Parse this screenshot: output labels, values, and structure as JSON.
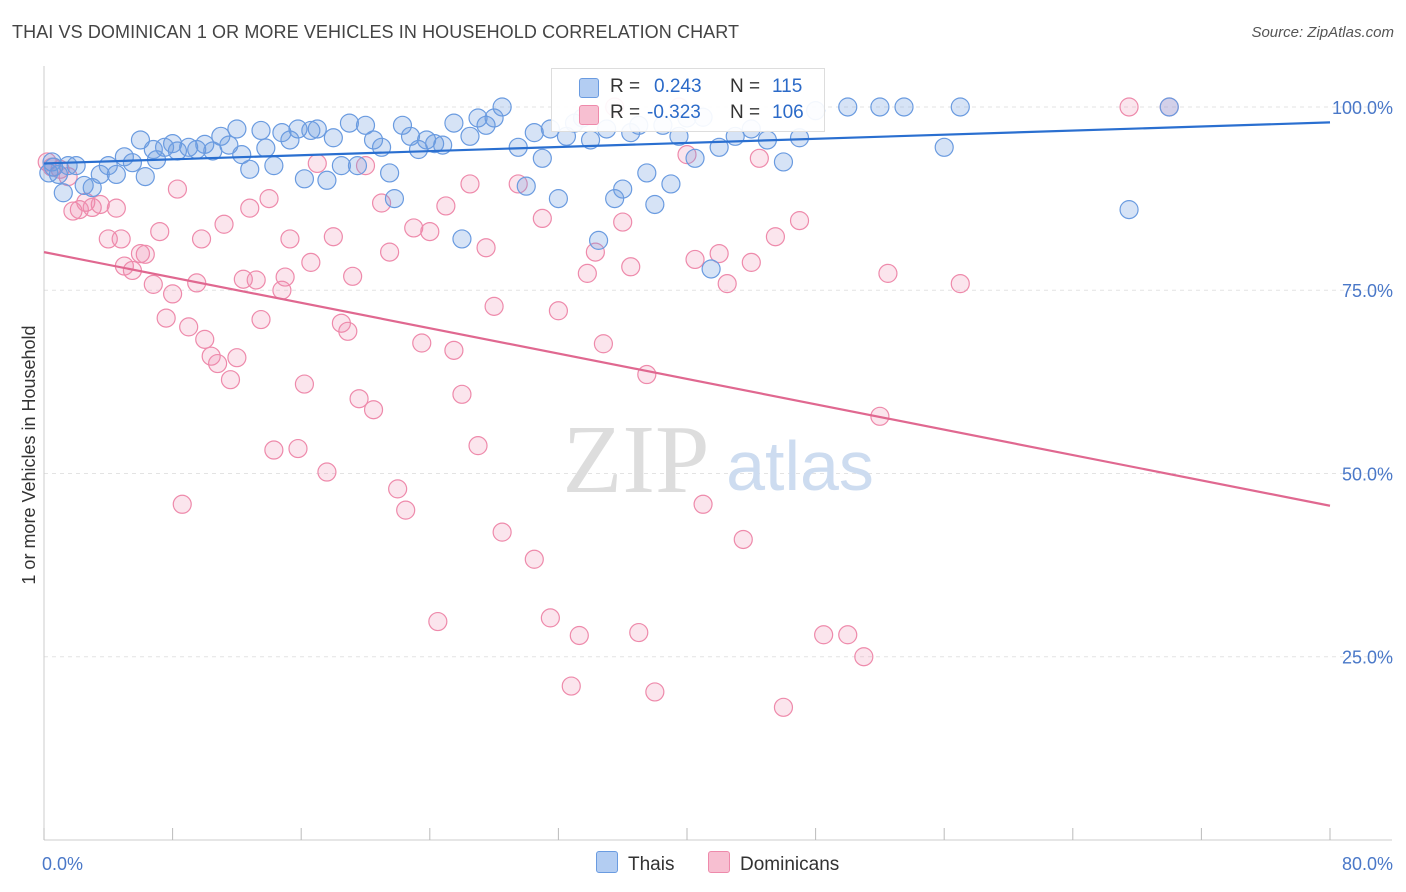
{
  "title": "THAI VS DOMINICAN 1 OR MORE VEHICLES IN HOUSEHOLD CORRELATION CHART",
  "source": "Source: ZipAtlas.com",
  "watermark": {
    "zip": "ZIP",
    "atlas": "atlas"
  },
  "legend": {
    "r_label": "R =",
    "n_label": "N =",
    "thais": {
      "r": "0.243",
      "n": "115"
    },
    "dominicans": {
      "r": "-0.323",
      "n": "106"
    }
  },
  "bottom_legend": {
    "thais": "Thais",
    "dominicans": "Dominicans"
  },
  "colors": {
    "thais": "#6a9be0",
    "dominicans": "#ee8aab",
    "thais_line": "#2a6fd0",
    "dominicans_line": "#e06890",
    "tick_text": "#4a78c8"
  },
  "chart_data": {
    "type": "scatter",
    "title": "THAI VS DOMINICAN 1 OR MORE VEHICLES IN HOUSEHOLD CORRELATION CHART",
    "xlabel": "",
    "ylabel": "1 or more Vehicles in Household",
    "xlim": [
      0,
      80
    ],
    "ylim": [
      0,
      104.5
    ],
    "x_tick_labels": [
      "0.0%",
      "80.0%"
    ],
    "y_ticks": [
      25,
      50,
      75,
      100
    ],
    "y_tick_labels": [
      "25.0%",
      "50.0%",
      "75.0%",
      "100.0%"
    ],
    "grid": true,
    "legend_position": "top-center",
    "series": [
      {
        "name": "Thais",
        "trend": {
          "x": [
            0,
            80
          ],
          "y": [
            92.3,
            97.9
          ]
        },
        "points": [
          [
            0.3,
            91
          ],
          [
            0.5,
            92.5
          ],
          [
            0.6,
            91.8
          ],
          [
            0.9,
            90.8
          ],
          [
            1.2,
            88.3
          ],
          [
            1.5,
            92
          ],
          [
            2.0,
            92
          ],
          [
            2.5,
            89.3
          ],
          [
            3.0,
            89
          ],
          [
            3.5,
            90.8
          ],
          [
            4.0,
            92
          ],
          [
            4.5,
            90.8
          ],
          [
            5.0,
            93.2
          ],
          [
            5.5,
            92.4
          ],
          [
            6.0,
            95.5
          ],
          [
            6.3,
            90.5
          ],
          [
            6.8,
            94.2
          ],
          [
            7.0,
            92.8
          ],
          [
            7.5,
            94.5
          ],
          [
            8.0,
            95
          ],
          [
            8.3,
            94
          ],
          [
            9.0,
            94.5
          ],
          [
            9.5,
            94.2
          ],
          [
            10.0,
            94.9
          ],
          [
            10.5,
            94
          ],
          [
            11.0,
            96
          ],
          [
            11.5,
            94.8
          ],
          [
            12.0,
            97
          ],
          [
            12.3,
            93.5
          ],
          [
            12.8,
            91.5
          ],
          [
            13.5,
            96.8
          ],
          [
            13.8,
            94.4
          ],
          [
            14.3,
            92
          ],
          [
            14.8,
            96.5
          ],
          [
            15.3,
            95.5
          ],
          [
            15.8,
            97
          ],
          [
            16.2,
            90.2
          ],
          [
            16.6,
            96.8
          ],
          [
            17.0,
            97
          ],
          [
            17.6,
            90
          ],
          [
            18.0,
            95.8
          ],
          [
            18.5,
            92
          ],
          [
            19.0,
            97.8
          ],
          [
            19.5,
            92
          ],
          [
            20.0,
            97.5
          ],
          [
            20.5,
            95.5
          ],
          [
            21.0,
            94.5
          ],
          [
            21.5,
            91
          ],
          [
            21.8,
            87.5
          ],
          [
            22.3,
            97.5
          ],
          [
            22.8,
            96
          ],
          [
            23.3,
            94.2
          ],
          [
            23.8,
            95.5
          ],
          [
            24.3,
            95
          ],
          [
            24.8,
            94.8
          ],
          [
            25.5,
            97.8
          ],
          [
            26.0,
            82
          ],
          [
            26.5,
            96
          ],
          [
            27.0,
            98.5
          ],
          [
            27.5,
            97.5
          ],
          [
            28.0,
            98.5
          ],
          [
            28.5,
            100
          ],
          [
            29.5,
            94.5
          ],
          [
            30.0,
            89.2
          ],
          [
            30.5,
            96.5
          ],
          [
            31.0,
            93
          ],
          [
            31.5,
            97
          ],
          [
            32.0,
            87.5
          ],
          [
            32.5,
            96
          ],
          [
            33.0,
            97.8
          ],
          [
            33.5,
            98.5
          ],
          [
            34.0,
            95.5
          ],
          [
            34.5,
            81.8
          ],
          [
            35.0,
            97
          ],
          [
            35.5,
            87.5
          ],
          [
            36.0,
            88.8
          ],
          [
            36.5,
            96.5
          ],
          [
            37.0,
            97.5
          ],
          [
            37.5,
            91
          ],
          [
            38.0,
            86.7
          ],
          [
            38.5,
            97.5
          ],
          [
            39.0,
            89.5
          ],
          [
            39.5,
            96
          ],
          [
            40.0,
            98.5
          ],
          [
            40.5,
            93
          ],
          [
            41.0,
            98.6
          ],
          [
            41.5,
            77.9
          ],
          [
            42.0,
            94.5
          ],
          [
            43.0,
            96
          ],
          [
            44.0,
            97
          ],
          [
            45.0,
            95.5
          ],
          [
            46.0,
            92.5
          ],
          [
            47.0,
            95.8
          ],
          [
            48.0,
            99.5
          ],
          [
            50.0,
            100
          ],
          [
            52.0,
            100
          ],
          [
            53.5,
            100
          ],
          [
            56.0,
            94.5
          ],
          [
            57.0,
            100
          ],
          [
            67.5,
            86
          ],
          [
            70.0,
            100
          ]
        ]
      },
      {
        "name": "Dominicans",
        "trend": {
          "x": [
            0,
            80
          ],
          "y": [
            80.2,
            45.6
          ]
        },
        "points": [
          [
            0.2,
            92.5
          ],
          [
            0.5,
            91.8
          ],
          [
            1.0,
            91.5
          ],
          [
            1.5,
            90.5
          ],
          [
            1.8,
            85.8
          ],
          [
            2.2,
            86
          ],
          [
            2.6,
            87
          ],
          [
            3.0,
            86.3
          ],
          [
            3.5,
            86.7
          ],
          [
            4.0,
            82
          ],
          [
            4.5,
            86.2
          ],
          [
            4.8,
            82
          ],
          [
            5.0,
            78.3
          ],
          [
            5.5,
            77.7
          ],
          [
            6.0,
            80
          ],
          [
            6.3,
            79.9
          ],
          [
            6.8,
            75.8
          ],
          [
            7.2,
            83
          ],
          [
            7.6,
            71.2
          ],
          [
            8.0,
            74.5
          ],
          [
            8.3,
            88.8
          ],
          [
            8.6,
            45.8
          ],
          [
            9.0,
            70
          ],
          [
            9.5,
            76
          ],
          [
            9.8,
            82
          ],
          [
            10.0,
            68.3
          ],
          [
            10.4,
            66
          ],
          [
            10.8,
            65
          ],
          [
            11.2,
            84
          ],
          [
            11.6,
            62.8
          ],
          [
            12.0,
            65.8
          ],
          [
            12.4,
            76.5
          ],
          [
            12.8,
            86.2
          ],
          [
            13.2,
            76.4
          ],
          [
            13.5,
            71
          ],
          [
            14.0,
            87.5
          ],
          [
            14.3,
            53.2
          ],
          [
            14.8,
            75
          ],
          [
            15.0,
            76.8
          ],
          [
            15.3,
            82
          ],
          [
            15.8,
            53.4
          ],
          [
            16.2,
            62.2
          ],
          [
            16.6,
            78.8
          ],
          [
            17.0,
            92.3
          ],
          [
            17.6,
            50.2
          ],
          [
            18.0,
            82.3
          ],
          [
            18.5,
            70.5
          ],
          [
            18.9,
            69.4
          ],
          [
            19.2,
            76.9
          ],
          [
            19.6,
            60.2
          ],
          [
            20.0,
            92
          ],
          [
            20.5,
            58.7
          ],
          [
            21.0,
            86.9
          ],
          [
            21.5,
            80.2
          ],
          [
            22.0,
            47.9
          ],
          [
            22.5,
            45
          ],
          [
            23.0,
            83.5
          ],
          [
            23.5,
            67.8
          ],
          [
            24.0,
            83
          ],
          [
            24.5,
            29.8
          ],
          [
            25.0,
            86.5
          ],
          [
            25.5,
            66.8
          ],
          [
            26.0,
            60.8
          ],
          [
            26.5,
            89.5
          ],
          [
            27.0,
            53.8
          ],
          [
            27.5,
            80.8
          ],
          [
            28.0,
            72.8
          ],
          [
            28.5,
            42
          ],
          [
            29.5,
            89.5
          ],
          [
            30.5,
            38.3
          ],
          [
            31.0,
            84.8
          ],
          [
            31.5,
            30.3
          ],
          [
            32.0,
            72.2
          ],
          [
            32.8,
            21
          ],
          [
            33.3,
            27.9
          ],
          [
            33.8,
            77.3
          ],
          [
            34.3,
            80.2
          ],
          [
            34.8,
            67.7
          ],
          [
            35.5,
            100
          ],
          [
            36.0,
            84.3
          ],
          [
            36.5,
            78.2
          ],
          [
            37.0,
            28.3
          ],
          [
            37.5,
            63.5
          ],
          [
            38.0,
            20.2
          ],
          [
            39.5,
            100
          ],
          [
            40.0,
            93.5
          ],
          [
            40.5,
            79.2
          ],
          [
            41.0,
            45.8
          ],
          [
            42.0,
            80
          ],
          [
            42.5,
            75.9
          ],
          [
            43.5,
            41
          ],
          [
            44.0,
            78.8
          ],
          [
            44.5,
            93
          ],
          [
            45.5,
            82.3
          ],
          [
            46.0,
            18.1
          ],
          [
            47.0,
            84.5
          ],
          [
            48.5,
            28
          ],
          [
            50.0,
            28
          ],
          [
            51.0,
            25
          ],
          [
            52.0,
            57.8
          ],
          [
            52.5,
            77.3
          ],
          [
            57.0,
            75.9
          ],
          [
            67.5,
            100
          ],
          [
            70.0,
            100
          ]
        ]
      }
    ]
  }
}
